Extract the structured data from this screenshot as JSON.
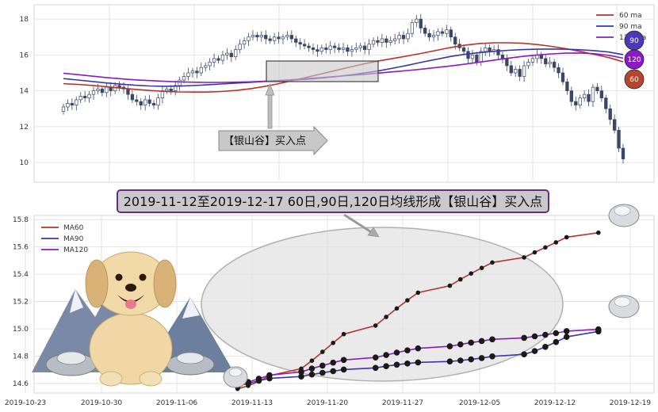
{
  "colors": {
    "ma60": "#b5332e",
    "ma90": "#3b36a8",
    "ma120": "#8a1bc4",
    "candle_up": "#ffffff",
    "candle_down": "#3a4766",
    "grid": "#dddddd"
  },
  "banner": {
    "text": "2019-11-12至2019-12-17 60日,90日,120日均线形成【银山谷】买入点"
  },
  "callout": {
    "text": "【银山谷】买入点"
  },
  "badges": [
    "90",
    "120",
    "60"
  ],
  "chart_data": [
    {
      "type": "candlestick",
      "ylim": [
        8.9,
        18.8
      ],
      "yticks": [
        10,
        12,
        14,
        16,
        18
      ],
      "grid": true,
      "legend_placement": "top-right",
      "legend": [
        "60 ma",
        "90 ma",
        "120 ma"
      ],
      "close": [
        13.1,
        13.3,
        13.2,
        13.5,
        13.7,
        13.6,
        13.8,
        14.0,
        14.1,
        13.9,
        14.2,
        14.0,
        14.3,
        14.2,
        14.1,
        13.8,
        13.5,
        13.4,
        13.2,
        13.5,
        13.3,
        13.2,
        13.6,
        14.0,
        14.1,
        14.0,
        14.3,
        14.6,
        14.8,
        15.0,
        15.1,
        15.0,
        15.3,
        15.4,
        15.6,
        15.8,
        15.7,
        16.0,
        16.1,
        15.9,
        16.3,
        16.6,
        16.8,
        17.0,
        17.1,
        17.0,
        17.1,
        16.9,
        16.8,
        17.0,
        16.9,
        17.0,
        17.1,
        16.9,
        16.7,
        16.6,
        16.5,
        16.4,
        16.3,
        16.2,
        16.4,
        16.3,
        16.5,
        16.4,
        16.3,
        16.4,
        16.2,
        16.3,
        16.4,
        16.5,
        16.3,
        16.6,
        16.8,
        16.7,
        16.9,
        16.7,
        16.8,
        16.9,
        17.1,
        16.9,
        17.2,
        17.8,
        18.0,
        17.5,
        17.2,
        17.0,
        17.1,
        17.3,
        17.2,
        17.4,
        17.0,
        16.6,
        16.4,
        16.2,
        15.8,
        16.0,
        15.6,
        16.2,
        16.4,
        16.2,
        16.3,
        16.0,
        15.8,
        15.4,
        15.0,
        15.2,
        14.8,
        15.4,
        15.6,
        15.8,
        16.0,
        15.8,
        15.5,
        15.6,
        15.3,
        15.0,
        14.5,
        14.0,
        13.4,
        13.2,
        13.6,
        13.8,
        13.4,
        14.2,
        14.0,
        13.6,
        13.0,
        12.4,
        11.8,
        10.8,
        10.2
      ],
      "series": [
        {
          "name": "60 ma",
          "values": [
            14.4,
            14.36,
            14.3,
            14.23,
            14.15,
            14.08,
            14.02,
            13.97,
            13.94,
            13.93,
            13.93,
            13.96,
            14.02,
            14.11,
            14.24,
            14.4,
            14.58,
            14.76,
            14.95,
            15.14,
            15.33,
            15.51,
            15.67,
            15.81,
            15.95,
            16.1,
            16.26,
            16.42,
            16.55,
            16.64,
            16.68,
            16.68,
            16.65,
            16.58,
            16.48,
            16.35,
            16.2,
            16.03,
            15.85,
            15.62
          ]
        },
        {
          "name": "90 ma",
          "values": [
            14.68,
            14.6,
            14.52,
            14.44,
            14.37,
            14.31,
            14.27,
            14.25,
            14.26,
            14.29,
            14.33,
            14.38,
            14.43,
            14.47,
            14.52,
            14.56,
            14.6,
            14.65,
            14.71,
            14.79,
            14.89,
            15.0,
            15.12,
            15.27,
            15.43,
            15.6,
            15.76,
            15.92,
            16.04,
            16.13,
            16.2,
            16.26,
            16.3,
            16.32,
            16.33,
            16.32,
            16.29,
            16.24,
            16.16,
            16.02
          ]
        },
        {
          "name": "120 ma",
          "values": [
            14.98,
            14.9,
            14.82,
            14.74,
            14.67,
            14.61,
            14.57,
            14.53,
            14.5,
            14.48,
            14.47,
            14.47,
            14.48,
            14.5,
            14.53,
            14.57,
            14.62,
            14.68,
            14.74,
            14.8,
            14.86,
            14.92,
            14.99,
            15.06,
            15.13,
            15.21,
            15.3,
            15.39,
            15.49,
            15.6,
            15.71,
            15.82,
            15.92,
            16.0,
            16.06,
            16.1,
            16.11,
            16.07,
            15.98,
            15.82
          ]
        }
      ]
    },
    {
      "type": "line",
      "xlabel": "",
      "ylabel": "",
      "ylim": [
        14.53,
        15.83
      ],
      "yticks": [
        14.6,
        14.8,
        15.0,
        15.2,
        15.4,
        15.6,
        15.8
      ],
      "grid": true,
      "legend_placement": "top-left",
      "x_ticks": [
        "2019-10-23",
        "2019-10-30",
        "2019-11-06",
        "2019-11-13",
        "2019-11-20",
        "2019-11-27",
        "2019-12-05",
        "2019-12-12",
        "2019-12-19"
      ],
      "x_start": "2019-11-12",
      "x_end": "2019-12-17",
      "series": [
        {
          "name": "MA60",
          "values": [
            14.56,
            14.583,
            14.615,
            14.657,
            14.708,
            14.767,
            14.831,
            14.897,
            14.961,
            15.024,
            15.087,
            15.149,
            15.209,
            15.265,
            15.316,
            15.362,
            15.405,
            15.446,
            15.486,
            15.523,
            15.56,
            15.596,
            15.633,
            15.671,
            15.704
          ]
        },
        {
          "name": "MA90",
          "values": [
            14.58,
            14.6,
            14.62,
            14.637,
            14.651,
            14.665,
            14.678,
            14.69,
            14.702,
            14.714,
            14.726,
            14.737,
            14.746,
            14.754,
            14.761,
            14.768,
            14.776,
            14.786,
            14.798,
            14.813,
            14.837,
            14.868,
            14.903,
            14.941,
            14.981
          ]
        },
        {
          "name": "MA120",
          "values": [
            14.58,
            14.61,
            14.635,
            14.66,
            14.685,
            14.709,
            14.731,
            14.752,
            14.772,
            14.79,
            14.808,
            14.826,
            14.842,
            14.857,
            14.872,
            14.886,
            14.899,
            14.911,
            14.923,
            14.934,
            14.945,
            14.956,
            14.968,
            14.983,
            14.996
          ]
        }
      ]
    }
  ]
}
